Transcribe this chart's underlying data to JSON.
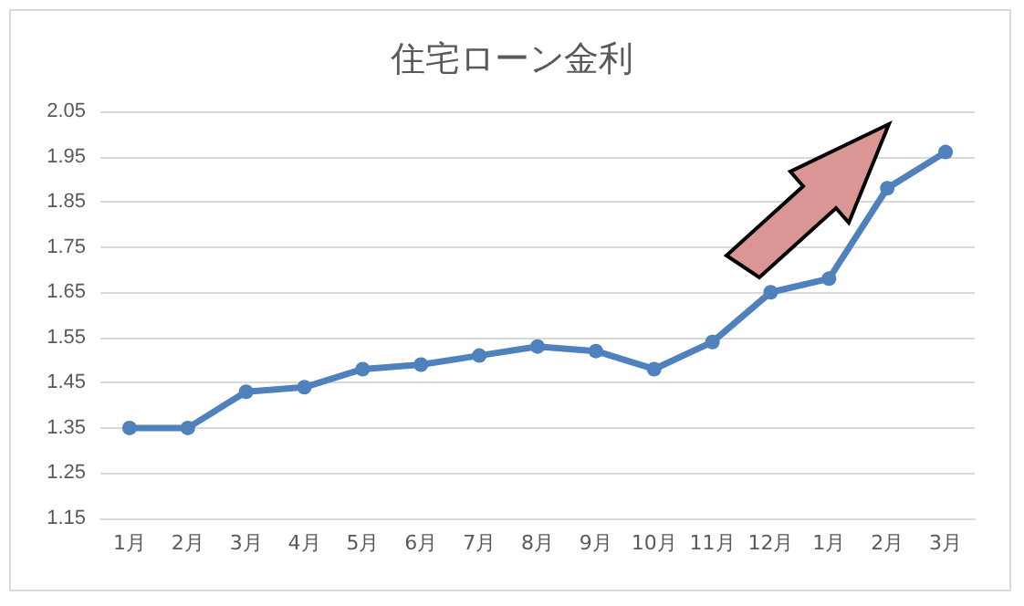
{
  "chart_data": {
    "type": "line",
    "title": "住宅ローン金利",
    "categories": [
      "1月",
      "2月",
      "3月",
      "4月",
      "5月",
      "6月",
      "7月",
      "8月",
      "9月",
      "10月",
      "11月",
      "12月",
      "1月",
      "2月",
      "3月"
    ],
    "series": [
      {
        "color": "#4f81bd",
        "values": [
          1.35,
          1.35,
          1.43,
          1.44,
          1.48,
          1.49,
          1.51,
          1.53,
          1.52,
          1.48,
          1.54,
          1.65,
          1.68,
          1.88,
          1.96
        ]
      }
    ],
    "ylim": [
      1.15,
      2.05
    ],
    "yticks": [
      1.15,
      1.25,
      1.35,
      1.45,
      1.55,
      1.65,
      1.75,
      1.85,
      1.95,
      2.05
    ],
    "grid": "y",
    "marker": "circle",
    "line_style": "solid"
  }
}
